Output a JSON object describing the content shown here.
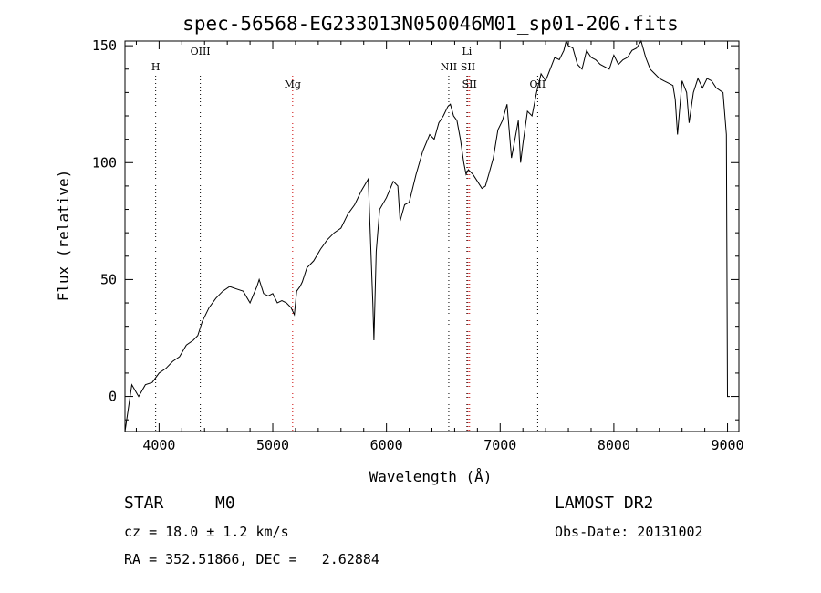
{
  "chart_data": {
    "type": "line",
    "title": "spec-56568-EG233013N050046M01_sp01-206.fits",
    "xlabel": "Wavelength (Å)",
    "ylabel": "Flux (relative)",
    "xlim": [
      3700,
      9100
    ],
    "ylim": [
      -15,
      152
    ],
    "xticks": [
      4000,
      5000,
      6000,
      7000,
      8000,
      9000
    ],
    "yticks": [
      0,
      50,
      100,
      150
    ],
    "grid": false,
    "series": [
      {
        "color": "#000000",
        "x": [
          3700,
          3760,
          3820,
          3880,
          3940,
          4000,
          4060,
          4120,
          4180,
          4240,
          4300,
          4340,
          4380,
          4440,
          4500,
          4560,
          4620,
          4680,
          4740,
          4800,
          4860,
          4880,
          4920,
          4960,
          5000,
          5040,
          5080,
          5120,
          5160,
          5190,
          5210,
          5240,
          5260,
          5300,
          5360,
          5420,
          5480,
          5540,
          5600,
          5660,
          5720,
          5780,
          5840,
          5880,
          5890,
          5910,
          5940,
          6000,
          6060,
          6100,
          6120,
          6160,
          6200,
          6260,
          6320,
          6380,
          6420,
          6460,
          6500,
          6540,
          6562,
          6590,
          6620,
          6650,
          6680,
          6700,
          6720,
          6760,
          6800,
          6840,
          6870,
          6900,
          6940,
          6980,
          7020,
          7060,
          7100,
          7130,
          7160,
          7180,
          7200,
          7240,
          7280,
          7320,
          7360,
          7400,
          7440,
          7480,
          7520,
          7560,
          7580,
          7600,
          7640,
          7680,
          7720,
          7760,
          7800,
          7840,
          7880,
          7920,
          7960,
          8000,
          8040,
          8080,
          8120,
          8160,
          8200,
          8240,
          8280,
          8320,
          8360,
          8400,
          8440,
          8480,
          8520,
          8540,
          8560,
          8600,
          8640,
          8662,
          8700,
          8740,
          8780,
          8820,
          8860,
          8900,
          8960,
          8990,
          9000,
          9020
        ],
        "y": [
          -15,
          5,
          0,
          5,
          6,
          10,
          12,
          15,
          17,
          22,
          24,
          26,
          32,
          38,
          42,
          45,
          47,
          46,
          45,
          40,
          47,
          50,
          44,
          43,
          44,
          40,
          41,
          40,
          38,
          35,
          45,
          47,
          49,
          55,
          58,
          63,
          67,
          70,
          72,
          78,
          82,
          88,
          93,
          40,
          24,
          62,
          80,
          85,
          92,
          90,
          75,
          82,
          83,
          95,
          105,
          112,
          110,
          117,
          120,
          124,
          125,
          120,
          118,
          110,
          100,
          95,
          97,
          95,
          92,
          89,
          90,
          95,
          102,
          114,
          118,
          125,
          102,
          110,
          118,
          100,
          108,
          122,
          120,
          130,
          138,
          135,
          140,
          145,
          144,
          148,
          152,
          150,
          149,
          142,
          140,
          148,
          145,
          144,
          142,
          141,
          140,
          146,
          142,
          144,
          145,
          148,
          149,
          152,
          145,
          140,
          138,
          136,
          135,
          134,
          133,
          127,
          112,
          135,
          130,
          117,
          130,
          136,
          132,
          136,
          135,
          132,
          130,
          112,
          0,
          0
        ]
      }
    ],
    "line_markers": [
      {
        "label": "H",
        "x": 3970,
        "color": "#000000",
        "label_level": 1
      },
      {
        "label": "OIII",
        "x": 4363,
        "color": "#000000",
        "label_level": 0
      },
      {
        "label": "Mg",
        "x": 5175,
        "color": "#cc0000",
        "label_level": 2
      },
      {
        "label": "NII",
        "x": 6548,
        "color": "#000000",
        "label_level": 1
      },
      {
        "label": "Li",
        "x": 6708,
        "color": "#000000",
        "label_level": 0
      },
      {
        "label": "SII",
        "x": 6717,
        "color": "#cc0000",
        "label_level": 1
      },
      {
        "label": "SII",
        "x": 6731,
        "color": "#cc0000",
        "label_level": 2
      },
      {
        "label": "OII",
        "x": 7330,
        "color": "#000000",
        "label_level": 2
      }
    ]
  },
  "info": {
    "object_type": "STAR",
    "subclass": "M0",
    "survey": "LAMOST DR2",
    "cz": "cz = 18.0 ± 1.2 km/s",
    "obs_date": "Obs-Date: 20131002",
    "coords": "RA = 352.51866, DEC =   2.62884"
  }
}
